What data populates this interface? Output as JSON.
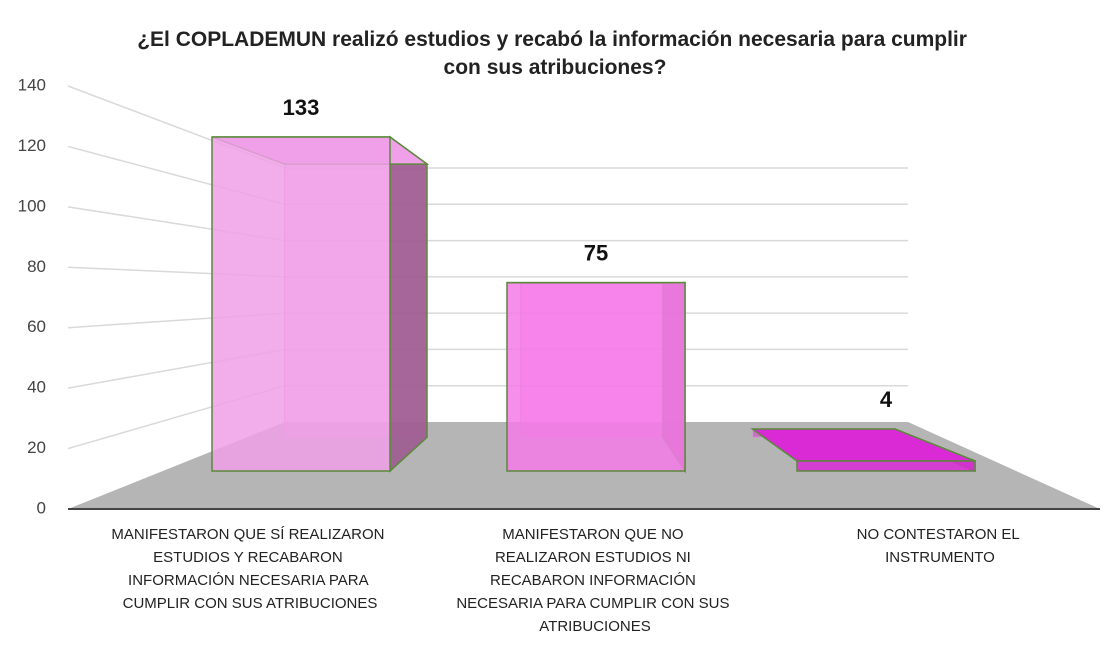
{
  "chart_data": {
    "type": "bar3d",
    "title": "¿El COPLADEMUN realizó estudios y recabó la información necesaria para cumplir con sus atribuciones?",
    "categories": [
      "MANIFESTARON QUE SÍ REALIZARON ESTUDIOS Y RECABARON INFORMACIÓN NECESARIA PARA CUMPLIR CON SUS ATRIBUCIONES",
      "MANIFESTARON QUE NO REALIZARON ESTUDIOS NI RECABARON INFORMACIÓN NECESARIA PARA CUMPLIR CON SUS ATRIBUCIONES",
      "NO CONTESTARON EL INSTRUMENTO"
    ],
    "values": [
      133,
      75,
      4
    ],
    "colors": [
      "#f0a0e8",
      "#f57ae8",
      "#d92ad6"
    ],
    "ylim": [
      0,
      140
    ],
    "yticks": [
      0,
      20,
      40,
      60,
      80,
      100,
      120,
      140
    ],
    "grid": true
  }
}
